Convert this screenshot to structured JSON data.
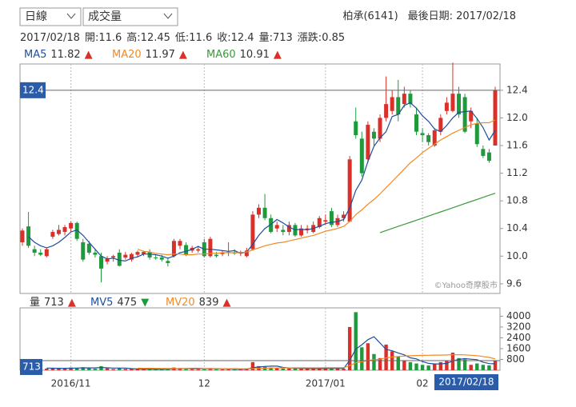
{
  "controls": {
    "period": "日線",
    "indicator": "成交量"
  },
  "header": {
    "stock": "柏承(6141)",
    "last_date_label": "最後日期:",
    "last_date": "2017/02/18"
  },
  "info": {
    "date": "2017/02/18",
    "items": [
      {
        "label": "開:",
        "value": 11.6
      },
      {
        "label": "高:",
        "value": 12.45
      },
      {
        "label": "低:",
        "value": 11.6
      },
      {
        "label": "收:",
        "value": 12.4
      },
      {
        "label": "量:",
        "value": 713
      },
      {
        "label": "漲跌:",
        "value": 0.85
      }
    ]
  },
  "watermark": "©Yahoo奇摩股市",
  "chart_data": [
    {
      "type": "candlestick",
      "up_color": "#d9302a",
      "down_color": "#1e9a3c",
      "ylim": [
        9.46,
        12.78
      ],
      "yticks": [
        9.6,
        {
          "value": 10,
          "label": "10.0"
        },
        10.4,
        10.8,
        11.2,
        11.6,
        {
          "value": 12,
          "label": "12.0"
        },
        12.4
      ],
      "open": [
        10.2,
        10.43,
        10.1,
        10.05,
        10.0,
        10.28,
        10.32,
        10.35,
        10.4,
        10.48,
        10.2,
        10.18,
        10.05,
        10.0,
        9.92,
        9.98,
        10.05,
        9.98,
        9.95,
        10.02,
        10.03,
        10.06,
        9.98,
        9.98,
        9.93,
        10.0,
        10.15,
        10.16,
        10.08,
        10.08,
        10.2,
        10.0,
        10.02,
        10.03,
        10.05,
        10.05,
        10.04,
        10.0,
        10.1,
        10.6,
        10.7,
        10.55,
        10.4,
        10.38,
        10.35,
        10.45,
        10.3,
        10.38,
        10.35,
        10.42,
        10.5,
        10.65,
        10.45,
        10.55,
        10.5,
        11.95,
        11.7,
        11.4,
        11.8,
        11.7,
        12.0,
        12.1,
        12.3,
        12.2,
        12.35,
        12.05,
        11.78,
        11.75,
        11.6,
        11.8,
        12.1,
        12.1,
        12.35,
        12.3,
        11.95,
        11.92,
        11.55,
        11.5,
        11.6
      ],
      "high": [
        10.4,
        10.64,
        10.15,
        10.1,
        10.12,
        10.38,
        10.45,
        10.45,
        10.5,
        10.5,
        10.25,
        10.22,
        10.1,
        10.05,
        10.0,
        10.02,
        10.1,
        10.06,
        10.05,
        10.08,
        10.08,
        10.1,
        10.02,
        10.02,
        9.98,
        10.25,
        10.25,
        10.2,
        10.15,
        10.15,
        10.25,
        10.28,
        10.06,
        10.08,
        10.2,
        10.1,
        10.08,
        10.12,
        10.65,
        10.75,
        10.9,
        10.6,
        10.5,
        10.45,
        10.5,
        10.48,
        10.45,
        10.45,
        10.5,
        10.58,
        10.6,
        10.7,
        10.6,
        10.65,
        11.45,
        12.15,
        11.8,
        11.95,
        11.85,
        12.05,
        12.6,
        12.4,
        12.55,
        12.45,
        12.4,
        12.15,
        11.85,
        11.78,
        11.85,
        12.05,
        12.3,
        12.8,
        12.45,
        12.35,
        12.15,
        12.0,
        11.6,
        11.55,
        12.45
      ],
      "low": [
        10.15,
        10.12,
        10.0,
        10.0,
        9.98,
        10.25,
        10.3,
        10.3,
        10.35,
        10.22,
        9.92,
        10.02,
        9.98,
        9.62,
        9.88,
        9.92,
        9.85,
        9.95,
        9.92,
        9.98,
        10.0,
        9.95,
        9.95,
        9.92,
        9.85,
        9.98,
        10.1,
        10.0,
        10.05,
        10.05,
        9.98,
        9.98,
        9.98,
        10.0,
        10.0,
        10.02,
        10.0,
        9.98,
        10.08,
        10.55,
        10.52,
        10.33,
        10.35,
        10.3,
        10.3,
        10.28,
        10.28,
        10.33,
        10.33,
        10.4,
        10.45,
        10.42,
        10.42,
        10.5,
        10.5,
        11.7,
        11.15,
        11.35,
        11.6,
        11.65,
        11.95,
        12.05,
        11.95,
        12.15,
        12.15,
        11.75,
        11.65,
        11.6,
        11.58,
        11.75,
        12.05,
        12.08,
        12.0,
        11.78,
        11.85,
        11.58,
        11.42,
        11.35,
        11.6
      ],
      "close": [
        10.37,
        10.15,
        10.05,
        10.02,
        10.1,
        10.35,
        10.38,
        10.42,
        10.48,
        10.25,
        9.95,
        10.05,
        10.02,
        9.82,
        9.96,
        10.0,
        9.86,
        10.02,
        10.03,
        10.06,
        10.06,
        9.98,
        9.97,
        9.95,
        9.9,
        10.22,
        10.22,
        10.02,
        10.12,
        10.1,
        10.0,
        10.25,
        10.0,
        10.05,
        10.06,
        10.04,
        10.06,
        10.08,
        10.6,
        10.7,
        10.55,
        10.35,
        10.45,
        10.35,
        10.45,
        10.3,
        10.4,
        10.4,
        10.45,
        10.55,
        10.52,
        10.45,
        10.55,
        10.6,
        11.4,
        11.75,
        11.2,
        11.9,
        11.7,
        12.0,
        12.2,
        12.3,
        12.05,
        12.35,
        12.2,
        11.8,
        11.75,
        11.65,
        11.82,
        12.0,
        12.22,
        12.35,
        12.05,
        11.8,
        12.1,
        11.62,
        11.45,
        11.38,
        12.4
      ],
      "series": [
        {
          "name": "MA5",
          "color": "#1f4e9c",
          "trend": "▲",
          "values": [
            null,
            10.28,
            10.2,
            10.15,
            10.12,
            10.15,
            10.2,
            10.27,
            10.35,
            10.38,
            10.3,
            10.2,
            10.1,
            10.0,
            9.96,
            9.97,
            9.94,
            9.93,
            9.97,
            9.99,
            10.03,
            10.03,
            10.02,
            10.0,
            9.97,
            10.0,
            10.05,
            10.07,
            10.1,
            10.14,
            10.1,
            10.1,
            10.09,
            10.08,
            10.07,
            10.08,
            10.04,
            10.06,
            10.17,
            10.3,
            10.4,
            10.46,
            10.53,
            10.48,
            10.42,
            10.38,
            10.39,
            10.38,
            10.4,
            10.43,
            10.47,
            10.49,
            10.5,
            10.53,
            10.7,
            10.95,
            11.1,
            11.37,
            11.59,
            11.71,
            11.8,
            12.02,
            12.05,
            12.18,
            12.22,
            12.14,
            12.03,
            11.95,
            11.84,
            11.8,
            11.89,
            12.0,
            12.08,
            12.09,
            12.1,
            11.99,
            11.86,
            11.68,
            11.82
          ]
        },
        {
          "name": "MA20",
          "color": "#f08a24",
          "trend": "▲",
          "values": [
            null,
            null,
            null,
            null,
            null,
            null,
            null,
            null,
            null,
            null,
            null,
            null,
            null,
            null,
            null,
            null,
            null,
            null,
            null,
            10.1,
            10.07,
            10.06,
            10.04,
            10.03,
            10.02,
            10.03,
            10.03,
            10.02,
            10.02,
            10.03,
            10.03,
            10.04,
            10.04,
            10.05,
            10.05,
            10.05,
            10.05,
            10.06,
            10.09,
            10.12,
            10.15,
            10.17,
            10.19,
            10.2,
            10.22,
            10.24,
            10.26,
            10.28,
            10.3,
            10.33,
            10.36,
            10.38,
            10.4,
            10.43,
            10.5,
            10.6,
            10.67,
            10.75,
            10.82,
            10.9,
            10.99,
            11.08,
            11.17,
            11.26,
            11.35,
            11.42,
            11.5,
            11.56,
            11.62,
            11.68,
            11.73,
            11.78,
            11.82,
            11.86,
            11.9,
            11.92,
            11.93,
            11.93,
            11.97
          ]
        },
        {
          "name": "MA60",
          "color": "#3a9a3a",
          "trend": "▲",
          "values": [
            null,
            null,
            null,
            null,
            null,
            null,
            null,
            null,
            null,
            null,
            null,
            null,
            null,
            null,
            null,
            null,
            null,
            null,
            null,
            null,
            null,
            null,
            null,
            null,
            null,
            null,
            null,
            null,
            null,
            null,
            null,
            null,
            null,
            null,
            null,
            null,
            null,
            null,
            null,
            null,
            null,
            null,
            null,
            null,
            null,
            null,
            null,
            null,
            null,
            null,
            null,
            null,
            null,
            null,
            null,
            null,
            null,
            null,
            null,
            10.34,
            10.37,
            10.4,
            10.43,
            10.46,
            10.49,
            10.52,
            10.55,
            10.58,
            10.61,
            10.64,
            10.67,
            10.7,
            10.73,
            10.76,
            10.79,
            10.82,
            10.85,
            10.88,
            10.91
          ]
        }
      ]
    },
    {
      "type": "bar",
      "name": "量",
      "trend": "▲",
      "tick_color": "#d9302a",
      "categories": [
        null,
        null,
        null,
        null,
        null,
        null,
        null,
        null,
        "2016/11",
        null,
        null,
        null,
        null,
        null,
        null,
        null,
        null,
        null,
        null,
        null,
        null,
        null,
        null,
        null,
        null,
        null,
        null,
        null,
        null,
        null,
        "12",
        null,
        null,
        null,
        null,
        null,
        null,
        null,
        null,
        null,
        null,
        null,
        null,
        null,
        null,
        null,
        null,
        null,
        null,
        null,
        "2017/01",
        null,
        null,
        null,
        null,
        null,
        null,
        null,
        null,
        null,
        null,
        null,
        null,
        null,
        null,
        null,
        "02",
        null,
        null,
        null,
        null,
        null,
        null,
        null,
        null,
        null,
        null,
        null,
        null
      ],
      "ylim": [
        0,
        4620
      ],
      "yticks": [
        800,
        1600,
        2400,
        3200,
        4000
      ],
      "values": [
        180,
        260,
        150,
        90,
        120,
        140,
        160,
        130,
        200,
        180,
        220,
        150,
        110,
        300,
        140,
        90,
        160,
        100,
        110,
        90,
        80,
        90,
        70,
        80,
        90,
        200,
        160,
        130,
        100,
        90,
        140,
        160,
        80,
        70,
        90,
        80,
        70,
        120,
        600,
        300,
        260,
        200,
        150,
        120,
        140,
        130,
        110,
        90,
        120,
        160,
        130,
        150,
        120,
        110,
        3200,
        4300,
        1700,
        2000,
        1200,
        900,
        1900,
        1400,
        1000,
        700,
        600,
        500,
        400,
        350,
        500,
        600,
        700,
        1300,
        900,
        800,
        400,
        500,
        400,
        360,
        713
      ],
      "series": [
        {
          "name": "MV5",
          "color": "#1f4e9c",
          "trend": "▼",
          "values": [
            null,
            null,
            null,
            null,
            160,
            150,
            140,
            140,
            150,
            160,
            180,
            170,
            170,
            200,
            180,
            160,
            160,
            160,
            120,
            100,
            90,
            90,
            80,
            80,
            80,
            110,
            120,
            130,
            140,
            140,
            120,
            120,
            120,
            110,
            100,
            80,
            80,
            90,
            190,
            240,
            280,
            300,
            300,
            210,
            170,
            150,
            130,
            120,
            120,
            120,
            120,
            130,
            140,
            130,
            740,
            1560,
            1890,
            2260,
            2480,
            2020,
            1540,
            1440,
            1280,
            1140,
            920,
            840,
            640,
            510,
            470,
            470,
            510,
            690,
            800,
            860,
            820,
            780,
            600,
            492,
            475
          ]
        },
        {
          "name": "MV20",
          "color": "#f08a24",
          "trend": "▲",
          "values": [
            null,
            null,
            null,
            null,
            null,
            null,
            null,
            null,
            null,
            null,
            null,
            null,
            null,
            null,
            null,
            null,
            null,
            null,
            null,
            150,
            145,
            140,
            135,
            130,
            125,
            125,
            120,
            120,
            115,
            115,
            115,
            115,
            110,
            110,
            110,
            110,
            105,
            105,
            130,
            140,
            150,
            160,
            165,
            170,
            170,
            175,
            175,
            175,
            180,
            180,
            185,
            185,
            190,
            190,
            340,
            550,
            630,
            720,
            780,
            820,
            910,
            975,
            1020,
            1050,
            1070,
            1090,
            1100,
            1110,
            1120,
            1120,
            1130,
            1150,
            1150,
            1140,
            1110,
            1080,
            1020,
            950,
            839
          ]
        }
      ]
    }
  ]
}
